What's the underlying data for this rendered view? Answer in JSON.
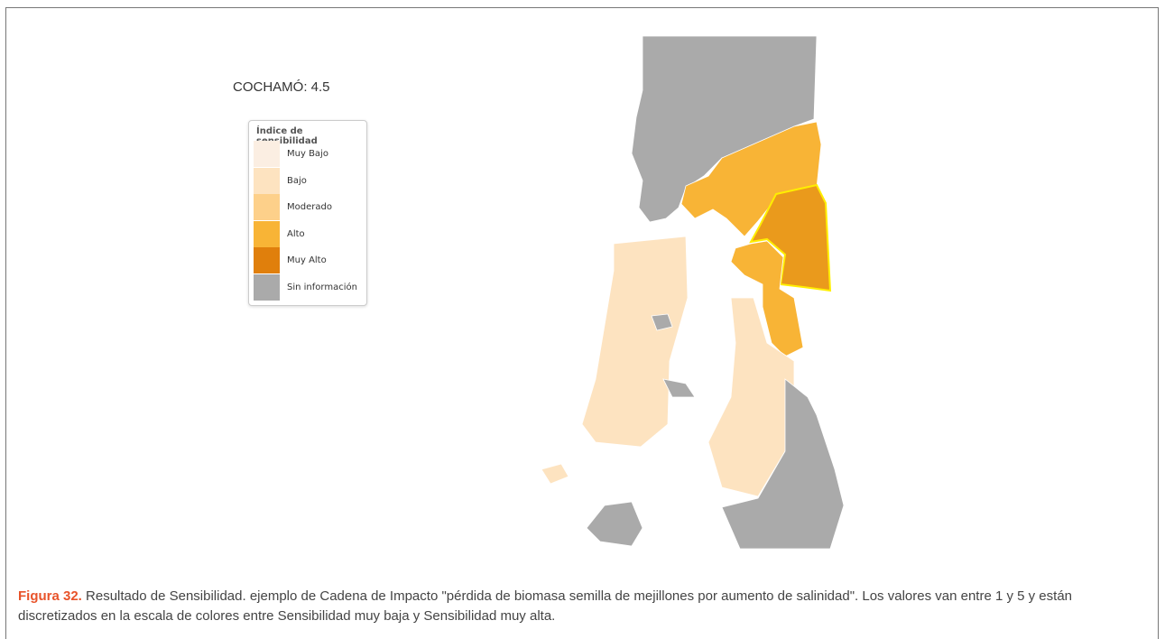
{
  "map_label": "COCHAMÓ: 4.5",
  "legend": {
    "title": "Índice de sensibilidad",
    "items": [
      {
        "label": "Muy Bajo",
        "color": "#fbeee2"
      },
      {
        "label": "Bajo",
        "color": "#fde3c0"
      },
      {
        "label": "Moderado",
        "color": "#fdd08a"
      },
      {
        "label": "Alto",
        "color": "#f8b436"
      },
      {
        "label": "Muy Alto",
        "color": "#e07f0c"
      },
      {
        "label": "Sin información",
        "color": "#aaaaaa"
      }
    ]
  },
  "caption": {
    "lead": "Figura 32.",
    "text": "Resultado de Sensibilidad. ejemplo de Cadena de Impacto \"pérdida de biomasa semilla de mejillones por aumento de salinidad\". Los valores van entre 1 y 5 y están discretizados en la escala de colores entre Sensibilidad muy baja y Sensibilidad muy alta."
  }
}
